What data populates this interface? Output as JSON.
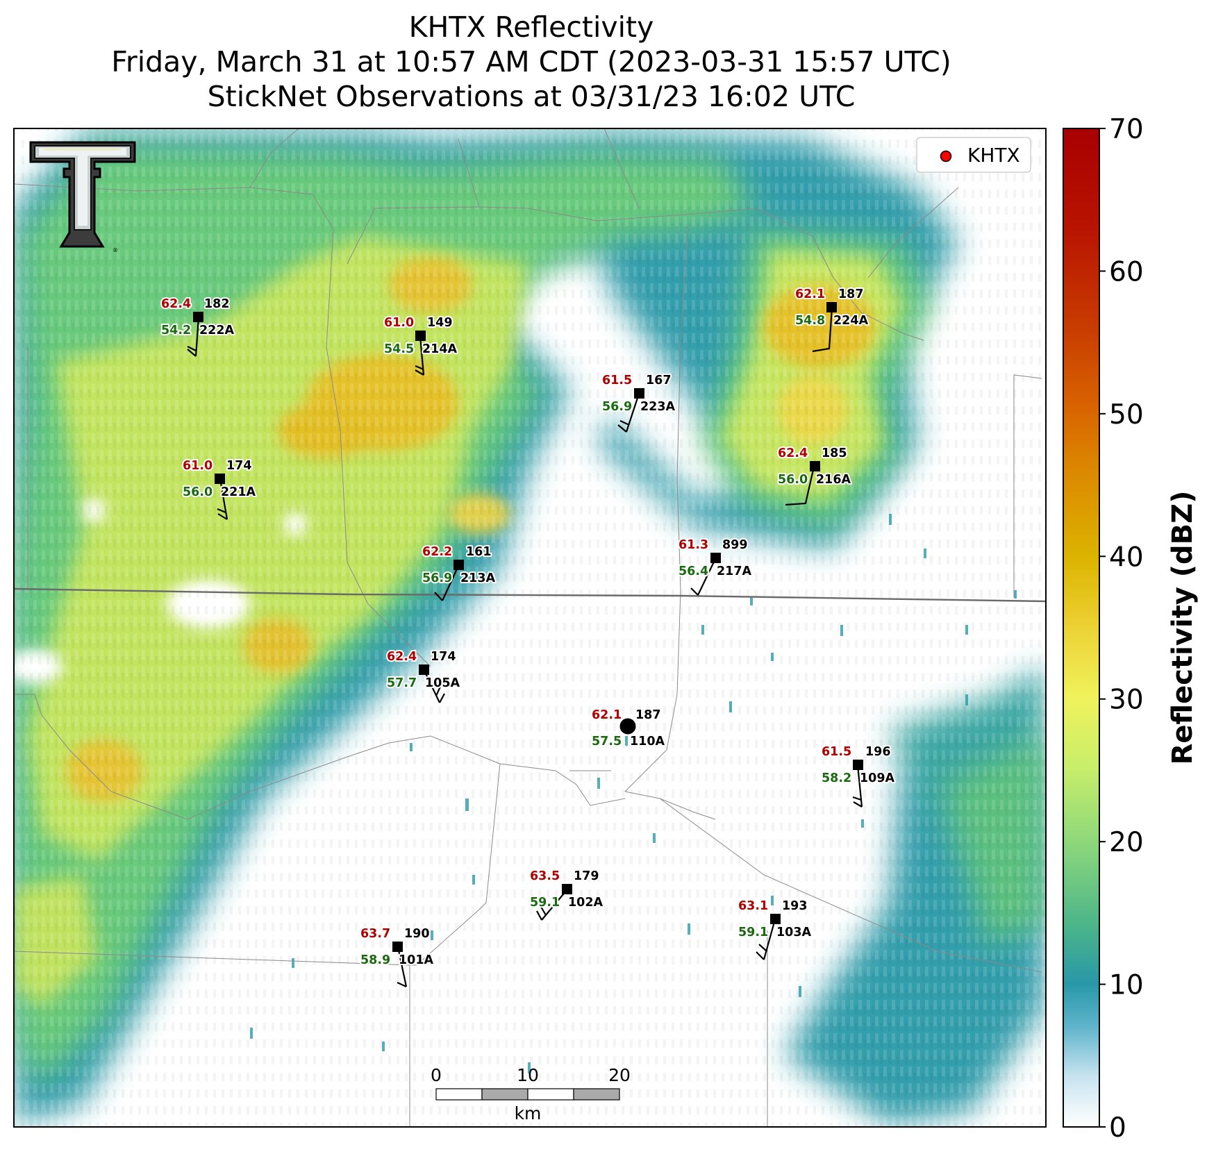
{
  "title": {
    "line1": "KHTX Reflectivity",
    "line2": "Friday, March 31 at 10:57 AM CDT (2023-03-31 15:57 UTC)",
    "line3": "StickNet Observations at 03/31/23 16:02 UTC"
  },
  "legend": {
    "label": "KHTX",
    "marker_color": "#ff0000"
  },
  "colorbar": {
    "label": "Reflectivity (dBZ)",
    "min": 0,
    "max": 70,
    "ticks": [
      "0",
      "10",
      "20",
      "30",
      "40",
      "50",
      "60",
      "70"
    ]
  },
  "scale_bar": {
    "ticks": [
      "0",
      "10",
      "20"
    ],
    "unit": "km"
  },
  "logo_icon": "texas-tech-double-t-logo",
  "stations": [
    {
      "id": "222A",
      "temp": "62.4",
      "dew": "54.2",
      "pressure": "182"
    },
    {
      "id": "214A",
      "temp": "61.0",
      "dew": "54.5",
      "pressure": "149"
    },
    {
      "id": "223A",
      "temp": "61.5",
      "dew": "56.9",
      "pressure": "167"
    },
    {
      "id": "224A",
      "temp": "62.1",
      "dew": "54.8",
      "pressure": "187"
    },
    {
      "id": "221A",
      "temp": "61.0",
      "dew": "56.0",
      "pressure": "174"
    },
    {
      "id": "216A",
      "temp": "62.4",
      "dew": "56.0",
      "pressure": "185"
    },
    {
      "id": "213A",
      "temp": "62.2",
      "dew": "56.9",
      "pressure": "161"
    },
    {
      "id": "217A",
      "temp": "61.3",
      "dew": "56.4",
      "pressure": "899"
    },
    {
      "id": "105A",
      "temp": "62.4",
      "dew": "57.7",
      "pressure": "174"
    },
    {
      "id": "110A",
      "temp": "62.1",
      "dew": "57.5",
      "pressure": "187"
    },
    {
      "id": "109A",
      "temp": "61.5",
      "dew": "58.2",
      "pressure": "196"
    },
    {
      "id": "102A",
      "temp": "63.5",
      "dew": "59.1",
      "pressure": "179"
    },
    {
      "id": "103A",
      "temp": "63.1",
      "dew": "59.1",
      "pressure": "193"
    },
    {
      "id": "101A",
      "temp": "63.7",
      "dew": "58.9",
      "pressure": "190"
    }
  ]
}
